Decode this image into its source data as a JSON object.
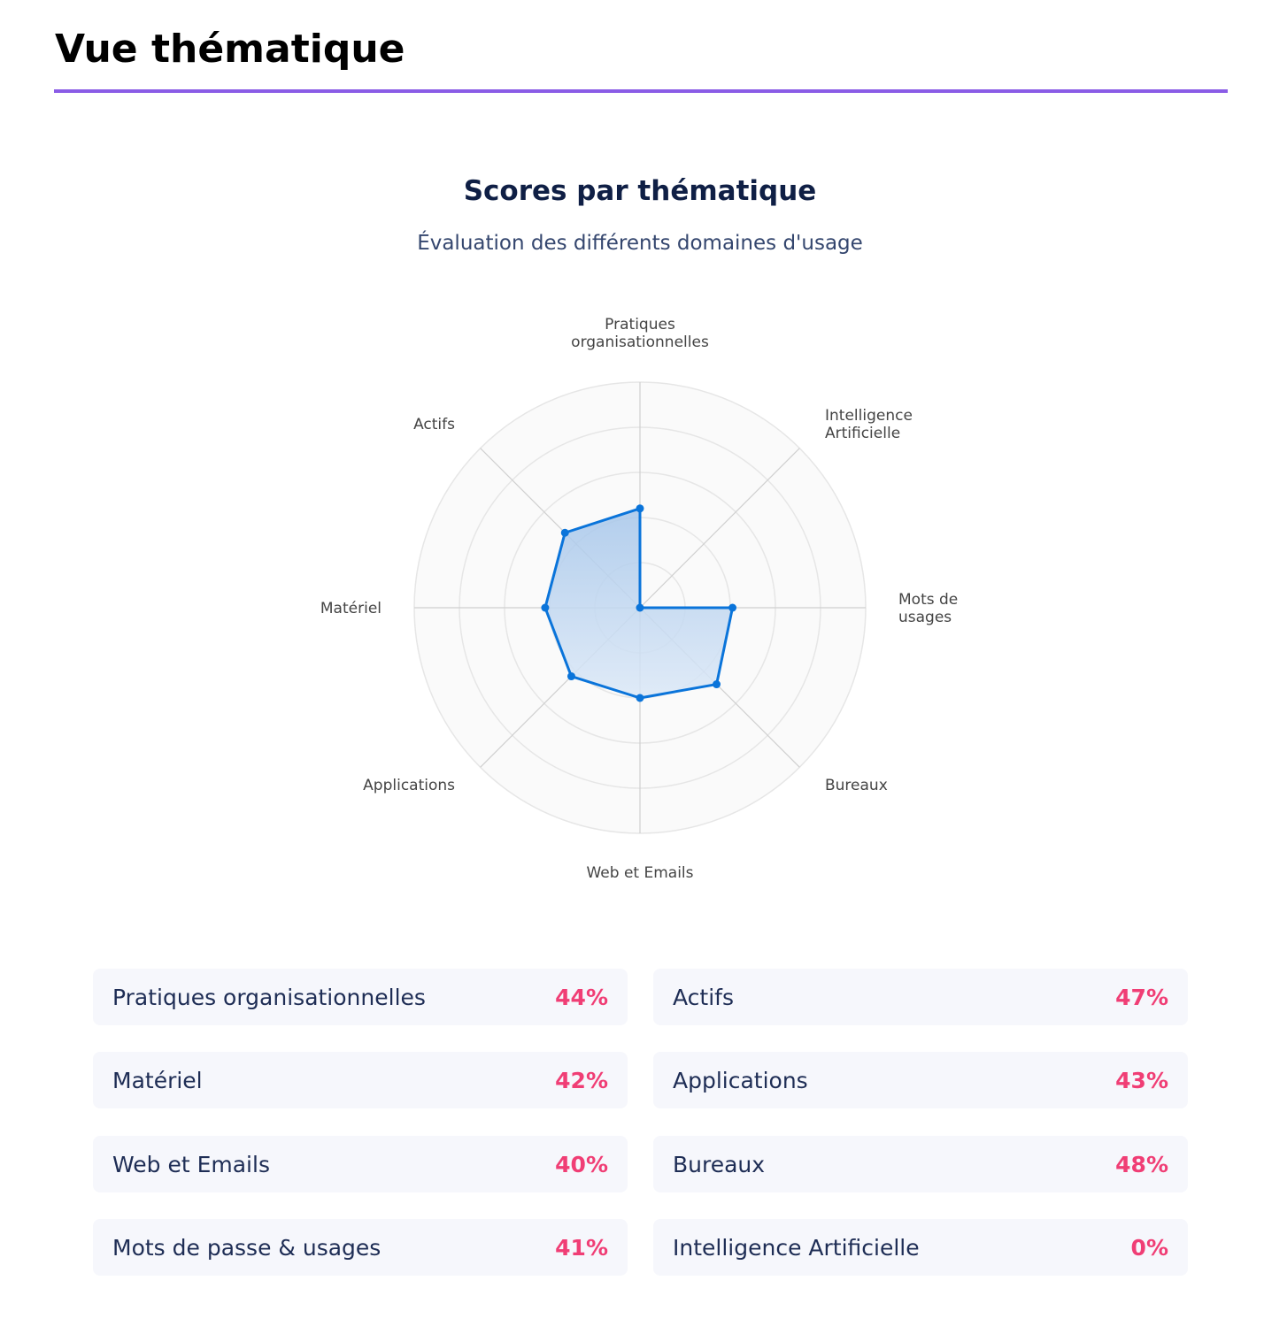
{
  "page_title": "Vue thématique",
  "chart_data": {
    "type": "radar",
    "title": "Scores par thématique",
    "subtitle": "Évaluation des différents domaines d'usage",
    "axes": [
      {
        "label_lines": [
          "Pratiques",
          "organisationnelles"
        ],
        "value": 44
      },
      {
        "label_lines": [
          "Intelligence",
          "Artificielle"
        ],
        "value": 0
      },
      {
        "label_lines": [
          "Mots de passe &",
          "usages"
        ],
        "value": 41
      },
      {
        "label_lines": [
          "Bureaux"
        ],
        "value": 48
      },
      {
        "label_lines": [
          "Web et Emails"
        ],
        "value": 40
      },
      {
        "label_lines": [
          "Applications"
        ],
        "value": 43
      },
      {
        "label_lines": [
          "Matériel"
        ],
        "value": 42
      },
      {
        "label_lines": [
          "Actifs"
        ],
        "value": 47
      }
    ],
    "range": [
      0,
      100
    ],
    "ring_step": 20,
    "colors": {
      "line": "#0a74da",
      "fill": "#a9c8ec",
      "grid": "#dddddd"
    }
  },
  "scores": [
    {
      "label": "Pratiques organisationnelles",
      "value": "44%"
    },
    {
      "label": "Actifs",
      "value": "47%"
    },
    {
      "label": "Matériel",
      "value": "42%"
    },
    {
      "label": "Applications",
      "value": "43%"
    },
    {
      "label": "Web et Emails",
      "value": "40%"
    },
    {
      "label": "Bureaux",
      "value": "48%"
    },
    {
      "label": "Mots de passe & usages",
      "value": "41%"
    },
    {
      "label": "Intelligence Artificielle",
      "value": "0%"
    }
  ]
}
